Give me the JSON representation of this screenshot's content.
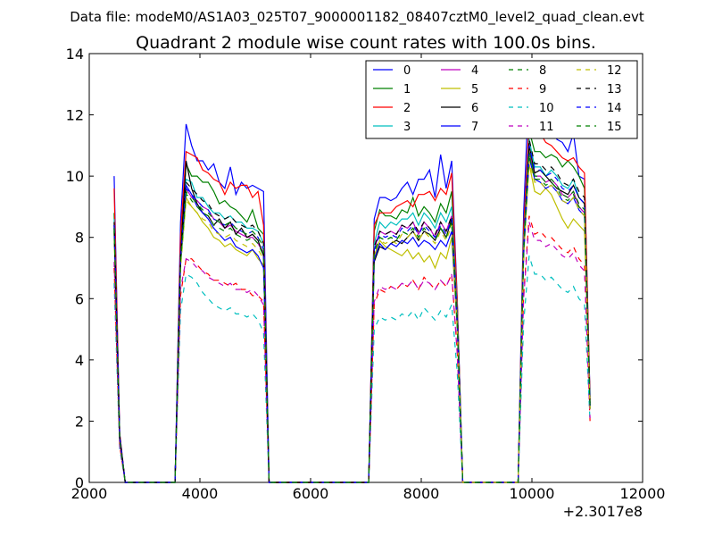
{
  "chart_data": {
    "type": "line",
    "suptitle": "Data file: modeM0/AS1A03_025T07_9000001182_08407cztM0_level2_quad_clean.evt",
    "title": "Quadrant 2 module wise count rates with 100.0s bins.",
    "x_offset_label": "+2.3017e8",
    "xlim": [
      2000,
      12000
    ],
    "ylim": [
      0,
      14
    ],
    "xticks": [
      2000,
      4000,
      6000,
      8000,
      10000,
      12000
    ],
    "yticks": [
      0,
      2,
      4,
      6,
      8,
      10,
      12,
      14
    ],
    "xtick_labels": [
      "2000",
      "4000",
      "6000",
      "8000",
      "10000",
      "12000"
    ],
    "ytick_labels": [
      "0",
      "2",
      "4",
      "6",
      "8",
      "10",
      "12",
      "14"
    ],
    "grid": false,
    "legend_position": "top-right",
    "legend_columns": 4,
    "x": [
      2450,
      2550,
      2650,
      3550,
      3650,
      3750,
      3850,
      3950,
      4050,
      4150,
      4250,
      4350,
      4450,
      4550,
      4650,
      4750,
      4850,
      4950,
      5050,
      5150,
      5250,
      7050,
      7150,
      7250,
      7350,
      7450,
      7550,
      7650,
      7750,
      7850,
      7950,
      8050,
      8150,
      8250,
      8350,
      8450,
      8550,
      8650,
      8750,
      9750,
      9850,
      9950,
      10050,
      10150,
      10250,
      10350,
      10450,
      10550,
      10650,
      10750,
      10850,
      10950,
      11050
    ],
    "series": [
      {
        "name": "0",
        "color": "#0000ff",
        "dash": "solid",
        "values": [
          10.0,
          1.6,
          0,
          0,
          8.5,
          11.7,
          11.0,
          10.5,
          10.5,
          10.2,
          10.4,
          9.8,
          9.6,
          10.3,
          9.4,
          9.8,
          9.6,
          9.7,
          9.6,
          9.5,
          0,
          0,
          8.6,
          9.3,
          9.3,
          9.2,
          9.3,
          9.6,
          9.8,
          9.4,
          9.9,
          9.9,
          10.2,
          9.3,
          10.7,
          9.6,
          10.5,
          6.0,
          0,
          0,
          8.8,
          13.1,
          11.4,
          11.7,
          11.5,
          11.8,
          11.2,
          11.1,
          10.8,
          11.4,
          10.0,
          9.9,
          2.8
        ]
      },
      {
        "name": "1",
        "color": "#008000",
        "dash": "solid",
        "values": [
          8.8,
          1.5,
          0,
          0,
          7.6,
          10.4,
          10.0,
          10.0,
          9.8,
          9.8,
          9.5,
          9.1,
          9.2,
          9.0,
          8.9,
          8.7,
          8.5,
          8.9,
          8.3,
          8.1,
          0,
          0,
          8.2,
          8.9,
          8.7,
          8.7,
          8.6,
          8.9,
          8.8,
          9.3,
          8.7,
          9.0,
          8.8,
          8.5,
          9.1,
          8.8,
          9.5,
          5.9,
          0,
          0,
          8.3,
          11.5,
          10.8,
          10.8,
          10.6,
          10.7,
          10.6,
          10.3,
          10.5,
          10.3,
          10.0,
          9.6,
          2.7
        ]
      },
      {
        "name": "2",
        "color": "#ff0000",
        "dash": "solid",
        "values": [
          9.6,
          1.6,
          0,
          0,
          8.1,
          10.8,
          10.7,
          10.6,
          10.2,
          10.1,
          9.9,
          9.8,
          9.4,
          9.8,
          9.6,
          9.7,
          9.7,
          9.3,
          9.5,
          8.4,
          0,
          0,
          8.4,
          8.8,
          8.8,
          8.8,
          9.0,
          9.1,
          9.2,
          9.0,
          9.4,
          9.4,
          9.5,
          9.2,
          9.6,
          9.4,
          10.1,
          5.9,
          0,
          0,
          8.3,
          11.8,
          11.6,
          11.4,
          11.1,
          11.0,
          10.8,
          10.6,
          10.5,
          10.6,
          10.3,
          10.1,
          2.7
        ]
      },
      {
        "name": "3",
        "color": "#00bfbf",
        "dash": "solid",
        "values": [
          8.6,
          1.5,
          0,
          0,
          7.4,
          9.9,
          9.8,
          9.3,
          9.3,
          9.0,
          8.8,
          8.8,
          8.6,
          8.7,
          8.5,
          8.5,
          8.3,
          8.3,
          8.2,
          7.8,
          0,
          0,
          7.8,
          8.5,
          8.3,
          8.5,
          8.4,
          8.6,
          8.6,
          8.8,
          8.4,
          8.8,
          8.6,
          8.3,
          8.8,
          8.5,
          9.0,
          5.6,
          0,
          0,
          7.8,
          11.2,
          10.3,
          10.3,
          10.0,
          10.2,
          10.0,
          9.7,
          9.6,
          9.9,
          9.3,
          9.1,
          2.5
        ]
      },
      {
        "name": "4",
        "color": "#bf00bf",
        "dash": "solid",
        "values": [
          8.3,
          1.5,
          0,
          0,
          7.3,
          9.6,
          9.3,
          9.2,
          9.0,
          8.9,
          8.6,
          8.5,
          8.3,
          8.4,
          8.2,
          8.1,
          8.0,
          8.0,
          7.8,
          7.5,
          0,
          0,
          7.6,
          8.2,
          8.1,
          8.2,
          8.1,
          8.4,
          8.3,
          8.5,
          8.1,
          8.5,
          8.3,
          8.0,
          8.5,
          8.2,
          8.7,
          5.4,
          0,
          0,
          7.6,
          10.8,
          10.0,
          10.0,
          9.8,
          9.9,
          9.7,
          9.4,
          9.3,
          9.5,
          9.0,
          8.8,
          2.5
        ]
      },
      {
        "name": "5",
        "color": "#bfbf00",
        "dash": "solid",
        "values": [
          8.2,
          1.4,
          0,
          0,
          7.2,
          9.3,
          9.0,
          8.8,
          8.5,
          8.3,
          8.0,
          7.9,
          7.7,
          7.8,
          7.6,
          7.5,
          7.4,
          7.6,
          7.3,
          7.1,
          0,
          0,
          7.4,
          7.9,
          7.7,
          7.6,
          7.5,
          7.4,
          7.6,
          7.3,
          7.5,
          7.2,
          7.4,
          7.0,
          7.5,
          7.3,
          8.0,
          5.0,
          0,
          0,
          7.5,
          10.4,
          9.5,
          9.4,
          9.6,
          9.4,
          9.0,
          8.6,
          8.3,
          8.6,
          8.4,
          8.2,
          2.4
        ]
      },
      {
        "name": "6",
        "color": "#000000",
        "dash": "solid",
        "values": [
          8.4,
          1.5,
          0,
          0,
          7.3,
          10.5,
          9.6,
          9.1,
          8.8,
          8.7,
          8.4,
          8.6,
          8.3,
          8.5,
          8.1,
          8.3,
          8.0,
          8.1,
          7.9,
          7.4,
          0,
          0,
          7.2,
          7.7,
          7.6,
          7.8,
          7.9,
          7.8,
          8.0,
          8.2,
          7.9,
          8.2,
          8.1,
          7.9,
          8.3,
          8.0,
          8.6,
          5.3,
          0,
          0,
          7.5,
          11.0,
          10.1,
          10.2,
          10.0,
          9.8,
          9.6,
          9.5,
          9.4,
          9.7,
          9.3,
          9.1,
          2.5
        ]
      },
      {
        "name": "7",
        "color": "#0000ff",
        "dash": "solid",
        "values": [
          8.3,
          1.5,
          0,
          0,
          7.2,
          9.7,
          9.4,
          9.0,
          8.8,
          8.6,
          8.3,
          8.1,
          7.9,
          8.0,
          7.7,
          7.6,
          7.5,
          7.6,
          7.4,
          7.0,
          0,
          0,
          7.3,
          7.8,
          7.6,
          7.8,
          7.7,
          7.9,
          7.8,
          8.0,
          7.7,
          7.9,
          7.8,
          7.6,
          7.9,
          7.7,
          8.2,
          5.1,
          0,
          0,
          7.4,
          10.6,
          9.9,
          9.8,
          9.6,
          9.7,
          9.5,
          9.2,
          9.1,
          9.3,
          8.9,
          8.7,
          2.4
        ]
      },
      {
        "name": "8",
        "color": "#008000",
        "dash": "dashed",
        "values": [
          8.2,
          1.4,
          0,
          0,
          7.1,
          9.5,
          9.2,
          9.0,
          8.8,
          8.7,
          8.4,
          8.3,
          8.2,
          8.3,
          8.1,
          8.0,
          7.9,
          8.0,
          7.8,
          7.4,
          0,
          0,
          7.5,
          8.0,
          7.9,
          8.0,
          7.9,
          8.2,
          8.1,
          8.3,
          8.0,
          8.3,
          8.1,
          7.9,
          8.3,
          8.0,
          8.5,
          5.2,
          0,
          0,
          7.5,
          10.7,
          9.9,
          9.9,
          9.7,
          9.8,
          9.6,
          9.3,
          9.2,
          9.4,
          9.0,
          8.8,
          2.4
        ]
      },
      {
        "name": "9",
        "color": "#ff0000",
        "dash": "dashed",
        "values": [
          7.0,
          1.2,
          0,
          0,
          6.1,
          7.3,
          7.3,
          7.1,
          6.9,
          6.8,
          6.6,
          6.6,
          6.5,
          6.4,
          6.5,
          6.3,
          6.3,
          6.1,
          6.1,
          5.9,
          0,
          0,
          5.8,
          6.3,
          6.2,
          6.4,
          6.3,
          6.5,
          6.4,
          6.6,
          6.3,
          6.7,
          6.5,
          6.3,
          6.6,
          6.4,
          6.8,
          4.3,
          0,
          0,
          6.1,
          8.7,
          8.1,
          8.2,
          8.0,
          8.0,
          7.8,
          7.6,
          7.5,
          7.7,
          7.3,
          7.1,
          2.0
        ]
      },
      {
        "name": "10",
        "color": "#00bfbf",
        "dash": "dashed",
        "values": [
          6.5,
          1.1,
          0,
          0,
          5.6,
          6.8,
          6.7,
          6.5,
          6.2,
          6.0,
          5.8,
          5.7,
          5.6,
          5.7,
          5.5,
          5.5,
          5.4,
          5.5,
          5.3,
          4.9,
          0,
          0,
          5.0,
          5.4,
          5.3,
          5.4,
          5.3,
          5.5,
          5.4,
          5.6,
          5.3,
          5.7,
          5.5,
          5.3,
          5.6,
          5.4,
          5.8,
          3.6,
          0,
          0,
          5.2,
          7.4,
          6.8,
          6.8,
          6.6,
          6.7,
          6.5,
          6.3,
          6.2,
          6.4,
          6.0,
          5.8,
          2.0
        ]
      },
      {
        "name": "11",
        "color": "#bf00bf",
        "dash": "dashed",
        "values": [
          7.2,
          1.2,
          0,
          0,
          6.3,
          7.3,
          7.2,
          7.0,
          6.9,
          6.7,
          6.6,
          6.5,
          6.4,
          6.5,
          6.3,
          6.3,
          6.2,
          6.3,
          6.1,
          5.8,
          0,
          0,
          5.9,
          6.4,
          6.3,
          6.4,
          6.3,
          6.5,
          6.4,
          6.6,
          6.3,
          6.6,
          6.5,
          6.3,
          6.6,
          6.4,
          6.8,
          4.2,
          0,
          0,
          6.0,
          8.5,
          7.9,
          7.9,
          7.7,
          7.8,
          7.6,
          7.4,
          7.3,
          7.5,
          7.1,
          6.9,
          2.1
        ]
      },
      {
        "name": "12",
        "color": "#bfbf00",
        "dash": "dashed",
        "values": [
          8.0,
          1.4,
          0,
          0,
          7.0,
          9.2,
          9.0,
          8.8,
          8.6,
          8.5,
          8.2,
          8.1,
          8.0,
          8.1,
          7.9,
          7.8,
          7.7,
          7.8,
          7.6,
          7.3,
          0,
          0,
          7.4,
          7.9,
          7.8,
          7.9,
          7.8,
          8.1,
          8.0,
          8.2,
          7.9,
          8.2,
          8.0,
          7.8,
          8.2,
          7.9,
          8.4,
          5.1,
          0,
          0,
          7.4,
          10.5,
          9.8,
          9.8,
          9.6,
          9.7,
          9.5,
          9.2,
          9.1,
          9.3,
          8.9,
          8.7,
          2.4
        ]
      },
      {
        "name": "13",
        "color": "#000000",
        "dash": "dashed",
        "values": [
          8.5,
          1.5,
          0,
          0,
          7.4,
          9.8,
          9.6,
          9.4,
          9.2,
          9.1,
          8.8,
          8.7,
          8.6,
          8.7,
          8.5,
          8.4,
          8.3,
          8.4,
          8.2,
          7.8,
          0,
          0,
          7.7,
          8.2,
          8.1,
          8.2,
          8.1,
          8.4,
          8.3,
          8.5,
          8.2,
          8.5,
          8.3,
          8.1,
          8.5,
          8.2,
          8.7,
          5.4,
          0,
          0,
          7.7,
          11.2,
          10.4,
          10.4,
          10.2,
          10.3,
          10.1,
          9.8,
          9.7,
          9.9,
          9.5,
          9.3,
          2.6
        ]
      },
      {
        "name": "14",
        "color": "#0000ff",
        "dash": "dashed",
        "values": [
          8.4,
          1.4,
          0,
          0,
          7.3,
          9.6,
          9.4,
          9.2,
          9.0,
          8.9,
          8.6,
          8.5,
          8.4,
          8.5,
          8.3,
          8.2,
          8.1,
          8.2,
          8.0,
          7.6,
          0,
          0,
          7.6,
          8.1,
          8.0,
          8.1,
          8.0,
          8.3,
          8.2,
          8.4,
          8.1,
          8.4,
          8.2,
          8.0,
          8.4,
          8.1,
          8.6,
          5.3,
          0,
          0,
          7.6,
          11.0,
          10.2,
          10.2,
          10.0,
          10.1,
          9.9,
          9.6,
          9.5,
          9.7,
          9.3,
          9.1,
          2.5
        ]
      },
      {
        "name": "15",
        "color": "#008000",
        "dash": "dashed",
        "values": [
          8.3,
          1.4,
          0,
          0,
          7.2,
          9.4,
          9.3,
          9.1,
          8.9,
          8.8,
          8.6,
          8.5,
          8.4,
          8.5,
          8.3,
          8.2,
          8.1,
          8.2,
          8.0,
          7.7,
          0,
          0,
          7.5,
          8.0,
          7.9,
          8.0,
          7.9,
          8.2,
          8.1,
          8.3,
          8.0,
          8.3,
          8.1,
          7.9,
          8.3,
          8.0,
          8.5,
          5.2,
          0,
          0,
          7.5,
          10.8,
          10.0,
          10.0,
          9.8,
          9.9,
          9.7,
          9.4,
          9.3,
          9.5,
          9.1,
          8.9,
          2.5
        ]
      }
    ]
  }
}
